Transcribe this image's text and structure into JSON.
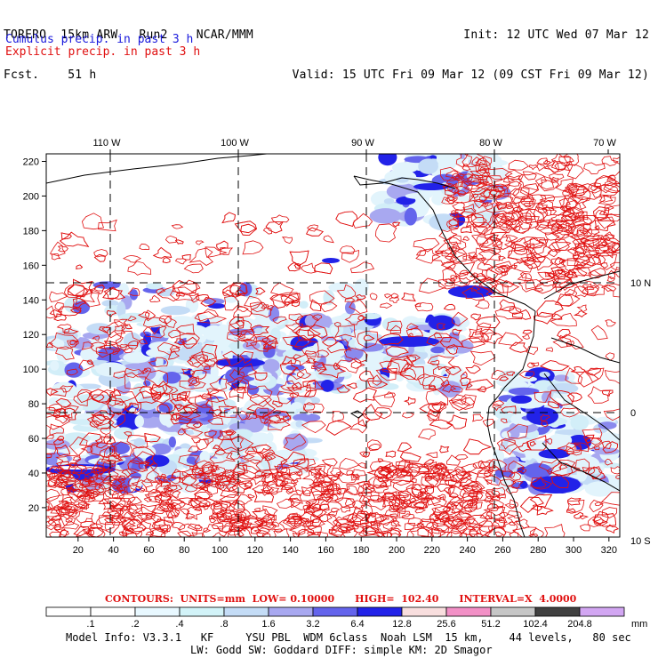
{
  "header": {
    "left_line1": "TORERO  15km ARW   Run2    NCAR/MMM",
    "left_line2": "Fcst.    51 h",
    "right_line1": "Init: 12 UTC Wed 07 Mar 12",
    "right_line2": "Valid: 15 UTC Fri 09 Mar 12 (09 CST Fri 09 Mar 12)",
    "cumulus": "Cumulus precip. in past 3 h",
    "explicit": "Explicit precip. in past 3 h"
  },
  "map": {
    "top_labels": [
      "110 W",
      "100 W",
      "90 W",
      "80 W",
      "70 W"
    ],
    "right_labels": [
      "10 N",
      "0",
      "10 S"
    ],
    "x_ticks": [
      "20",
      "40",
      "60",
      "80",
      "100",
      "120",
      "140",
      "160",
      "180",
      "200",
      "220",
      "240",
      "260",
      "280",
      "300",
      "320"
    ],
    "y_ticks": [
      "20",
      "40",
      "60",
      "80",
      "100",
      "120",
      "140",
      "160",
      "180",
      "200",
      "220"
    ],
    "colors": {
      "cumulus": "#1a1adc",
      "explicit": "#e01010",
      "coast": "#000000"
    }
  },
  "contours_line": "CONTOURS:  UNITS=mm  LOW= 0.10000      HIGH=  102.40      INTERVAL=X  4.0000",
  "colorbar": {
    "labels": [
      ".1",
      ".2",
      ".4",
      ".8",
      "1.6",
      "3.2",
      "6.4",
      "12.8",
      "25.6",
      "51.2",
      "102.4",
      "204.8"
    ],
    "unit": "mm",
    "colors": [
      "#ffffff",
      "#ffffff",
      "#e8f8ff",
      "#d2f3f8",
      "#c4dcf6",
      "#a8a8f0",
      "#6464ec",
      "#2222e8",
      "#f8dede",
      "#f290c6",
      "#c6c6c6",
      "#404040",
      "#d2a6f2"
    ]
  },
  "footer": {
    "line1": "Model Info: V3.3.1   KF     YSU PBL  WDM 6class  Noah LSM  15 km,    44 levels,   80 sec",
    "line2": "LW: Godd SW: Goddard DIFF: simple KM: 2D Smagor"
  }
}
